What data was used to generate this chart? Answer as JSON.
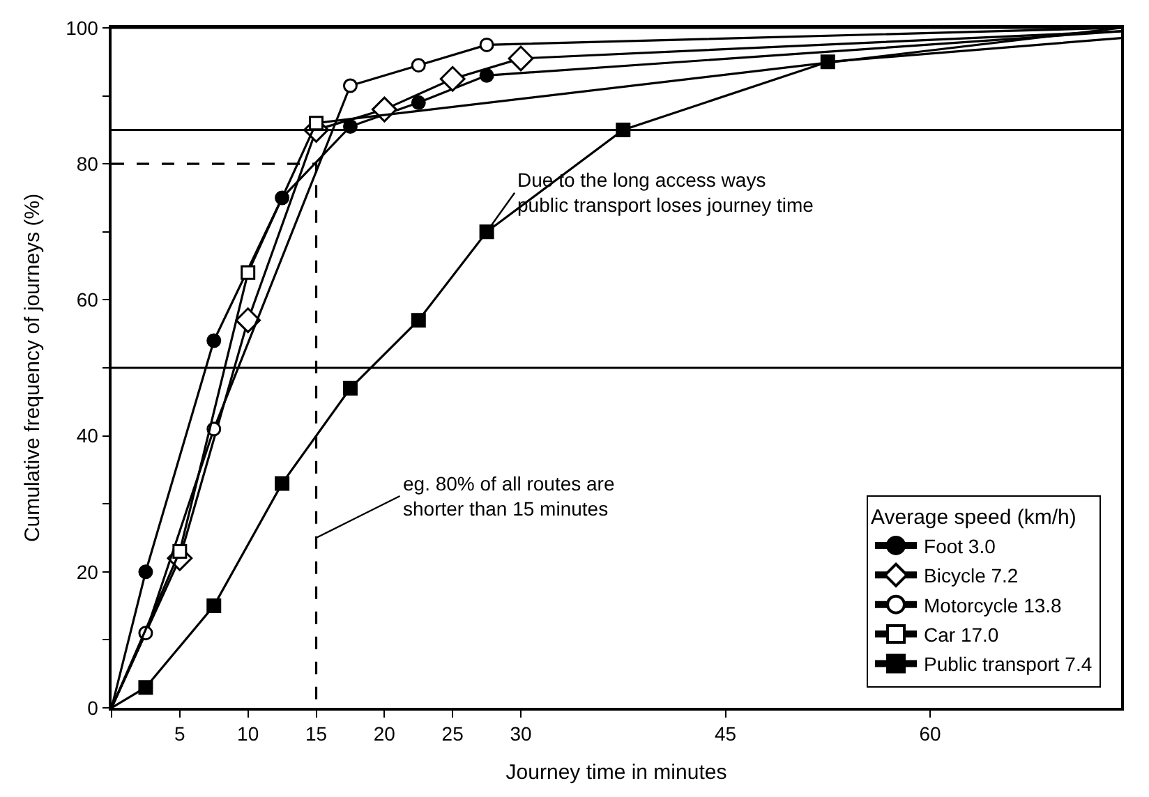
{
  "chart_data": {
    "type": "line",
    "xlabel": "Journey time in minutes",
    "ylabel": "Cumulative frequency of journeys (%)",
    "legend_title": "Average speed (km/h)",
    "legend": "bottom right",
    "xlim": [
      0,
      74
    ],
    "xticks": [
      {
        "value": 0,
        "label": null
      },
      5,
      10,
      15,
      20,
      25,
      30,
      45,
      60
    ],
    "ylim": [
      0,
      100
    ],
    "yticks": [
      0,
      {
        "value": 10,
        "label": null
      },
      20,
      {
        "value": 30,
        "label": null
      },
      40,
      {
        "value": 50,
        "label": null
      },
      60,
      {
        "value": 70,
        "label": null
      },
      80,
      {
        "value": 90,
        "label": null
      },
      100
    ],
    "series": [
      {
        "name": "Foot 3.0",
        "color": "#000000",
        "marker": "circle",
        "x": [
          0,
          2.5,
          7.5,
          12.5,
          17.5,
          22.5,
          27.5,
          74
        ],
        "values": [
          0,
          20,
          54,
          75,
          85.5,
          89,
          93,
          99.5
        ]
      },
      {
        "name": "Bicycle 7.2",
        "color": "#000000",
        "colors": [
          "#ffffff",
          "#ffffff",
          "#ffffff",
          "#ffffff",
          "#ffffff",
          "#ffffff",
          "#ffffff",
          "#ffffff"
        ],
        "marker": "diamond",
        "x": [
          0,
          5,
          10,
          15,
          20,
          25,
          30,
          74
        ],
        "values": [
          0,
          22,
          57,
          85,
          88,
          92.5,
          95.5,
          99.5
        ]
      },
      {
        "name": "Motorcycle 13.8",
        "color": "#000000",
        "colors": [
          "#ffffff",
          "#ffffff",
          "#ffffff",
          "#ffffff",
          "#ffffff",
          "#ffffff",
          "#ffffff"
        ],
        "marker": "circle",
        "x": [
          0,
          2.5,
          7.5,
          17.5,
          22.5,
          27.5,
          74
        ],
        "values": [
          0,
          11,
          41,
          91.5,
          94.5,
          97.5,
          100
        ]
      },
      {
        "name": "Car 17.0",
        "color": "#000000",
        "colors": [
          "#ffffff",
          "#ffffff",
          "#ffffff",
          "#ffffff",
          "#ffffff"
        ],
        "marker": "square",
        "x": [
          0,
          5,
          10,
          15,
          74
        ],
        "values": [
          0,
          23,
          64,
          86,
          100
        ]
      },
      {
        "name": "Public transport 7.4",
        "color": "#000000",
        "marker": "square",
        "x": [
          0,
          2.5,
          7.5,
          12.5,
          17.5,
          22.5,
          27.5,
          37.5,
          52.5,
          74
        ],
        "values": [
          0,
          3,
          15,
          33,
          47,
          57,
          70,
          85,
          95,
          98.5
        ]
      },
      {
        "color": "#000000",
        "marker": "none",
        "line_style": "dashed",
        "x": [
          0,
          15,
          15
        ],
        "values": [
          80,
          80,
          0
        ]
      }
    ],
    "ref_lines": [
      {
        "axis": "y",
        "value": 50
      },
      {
        "axis": "y",
        "value": 85
      },
      {
        "axis": "y",
        "value": 100
      }
    ],
    "annotations": [
      {
        "text": "eg. 80% of all routes are\nshorter than 15 minutes",
        "x": 15,
        "y": 25
      },
      {
        "text": "Due to the long access ways\npublic transport loses journey time",
        "x": 27.5,
        "y": 70
      }
    ]
  }
}
